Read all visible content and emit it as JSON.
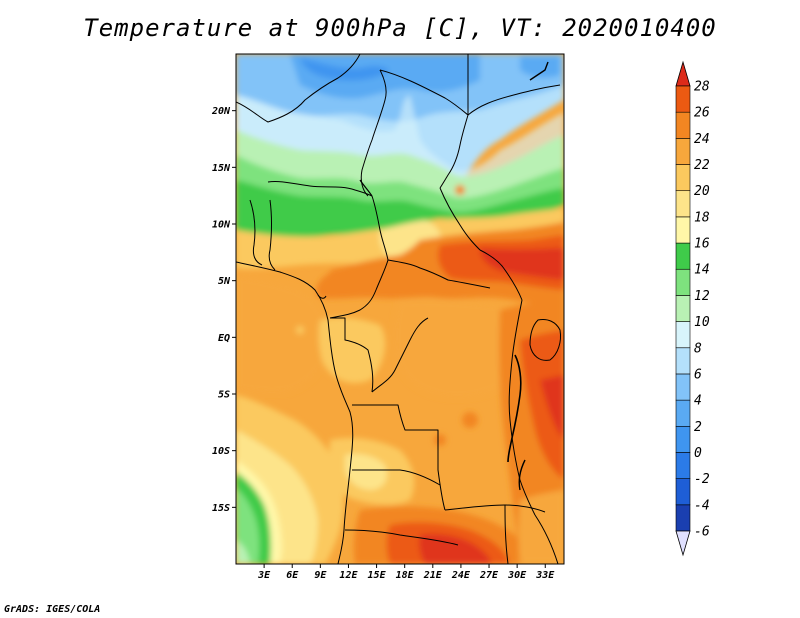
{
  "title": "Temperature at 900hPa [C], VT: 2020010400",
  "credit": "GrADS: IGES/COLA",
  "map": {
    "region": "Central Africa",
    "lon_range": [
      0,
      35
    ],
    "lat_range": [
      -20,
      25
    ],
    "y_ticks": [
      {
        "lat": 20,
        "label": "20N"
      },
      {
        "lat": 15,
        "label": "15N"
      },
      {
        "lat": 10,
        "label": "10N"
      },
      {
        "lat": 5,
        "label": "5N"
      },
      {
        "lat": 0,
        "label": "EQ"
      },
      {
        "lat": -5,
        "label": "5S"
      },
      {
        "lat": -10,
        "label": "10S"
      },
      {
        "lat": -15,
        "label": "15S"
      }
    ],
    "x_ticks": [
      {
        "lon": 3,
        "label": "3E"
      },
      {
        "lon": 6,
        "label": "6E"
      },
      {
        "lon": 9,
        "label": "9E"
      },
      {
        "lon": 12,
        "label": "12E"
      },
      {
        "lon": 15,
        "label": "15E"
      },
      {
        "lon": 18,
        "label": "18E"
      },
      {
        "lon": 21,
        "label": "21E"
      },
      {
        "lon": 24,
        "label": "24E"
      },
      {
        "lon": 27,
        "label": "27E"
      },
      {
        "lon": 30,
        "label": "30E"
      },
      {
        "lon": 33,
        "label": "33E"
      }
    ]
  },
  "colorbar": {
    "levels": [
      -6,
      -4,
      -2,
      0,
      2,
      4,
      6,
      8,
      10,
      12,
      14,
      16,
      18,
      20,
      22,
      24,
      26,
      28
    ],
    "labels": [
      "28",
      "26",
      "24",
      "22",
      "20",
      "18",
      "16",
      "14",
      "12",
      "10",
      "8",
      "6",
      "4",
      "2",
      "0",
      "-2",
      "-4",
      "-6"
    ],
    "colors_low_to_high": [
      "#0e1f7a",
      "#1a3fb0",
      "#1e5ed6",
      "#2b7be8",
      "#3f95f0",
      "#5aaaf3",
      "#82c3f8",
      "#b4e0fb",
      "#d8f4fb",
      "#b9f1b4",
      "#7ee27e",
      "#3fcb4a",
      "#fff7a8",
      "#fde48a",
      "#fbc95e",
      "#f7a73c",
      "#f28622",
      "#ec5a12",
      "#e0341a"
    ],
    "under_color": "#e0e0ff",
    "over_color": "#dd2b1a"
  }
}
